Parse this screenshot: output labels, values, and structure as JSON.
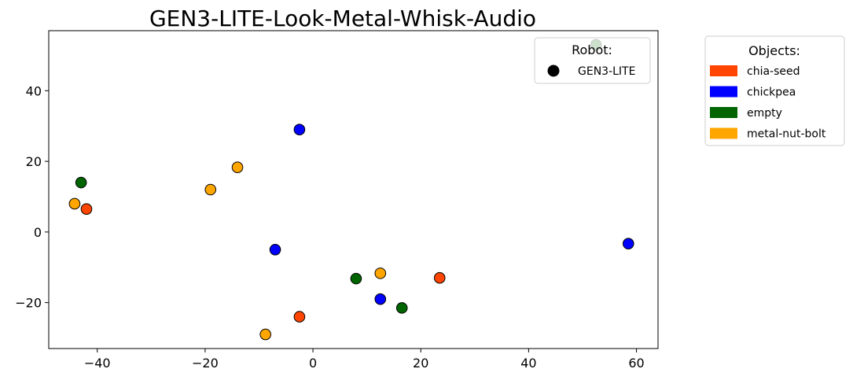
{
  "chart_data": {
    "type": "scatter",
    "title": "GEN3-LITE-Look-Metal-Whisk-Audio",
    "xlabel": "",
    "ylabel": "",
    "xlim": [
      -49,
      64
    ],
    "ylim": [
      -33,
      57
    ],
    "xticks": [
      -40,
      -20,
      0,
      20,
      40,
      60
    ],
    "yticks": [
      -20,
      0,
      20,
      40
    ],
    "xtick_labels": [
      "−40",
      "−20",
      "0",
      "20",
      "40",
      "60"
    ],
    "ytick_labels": [
      "−20",
      "0",
      "20",
      "40"
    ],
    "grid": false,
    "robot_legend": {
      "title": "Robot:",
      "placement": "top-right inside",
      "entries": [
        {
          "label": "GEN3-LITE",
          "color": "#000000",
          "marker": "circle"
        }
      ]
    },
    "objects_legend": {
      "title": "Objects:",
      "placement": "outside right",
      "entries": [
        {
          "label": "chia-seed",
          "color": "#ff4500"
        },
        {
          "label": "chickpea",
          "color": "#0000ff"
        },
        {
          "label": "empty",
          "color": "#006400"
        },
        {
          "label": "metal-nut-bolt",
          "color": "#ffa500"
        }
      ]
    },
    "series": [
      {
        "name": "chia-seed",
        "color": "#ff4500",
        "points": [
          [
            -42,
            6.5
          ],
          [
            -2.5,
            -24
          ],
          [
            23.5,
            -13
          ]
        ]
      },
      {
        "name": "chickpea",
        "color": "#0000ff",
        "points": [
          [
            -2.5,
            29
          ],
          [
            -7,
            -5
          ],
          [
            12.5,
            -19
          ],
          [
            58.5,
            -3.3
          ]
        ]
      },
      {
        "name": "empty",
        "color": "#006400",
        "points": [
          [
            -43,
            14
          ],
          [
            8,
            -13.2
          ],
          [
            16.5,
            -21.5
          ],
          [
            52.5,
            53
          ]
        ]
      },
      {
        "name": "metal-nut-bolt",
        "color": "#ffa500",
        "points": [
          [
            -44.2,
            8
          ],
          [
            -19,
            12
          ],
          [
            -14,
            18.3
          ],
          [
            12.5,
            -11.7
          ],
          [
            -8.8,
            -29
          ]
        ]
      }
    ]
  }
}
